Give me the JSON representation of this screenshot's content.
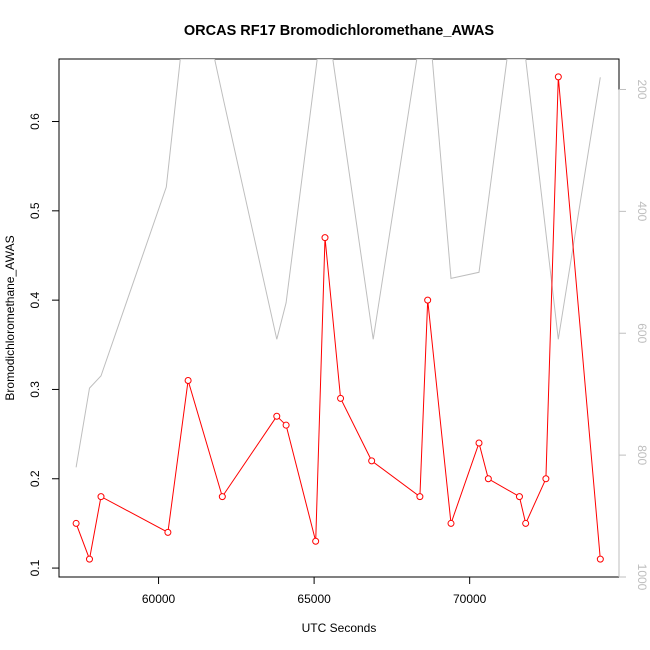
{
  "chart_data": {
    "type": "line",
    "title": "ORCAS RF17 Bromodichloromethane_AWAS",
    "xlabel": "UTC Seconds",
    "ylabel": "Bromodichloromethane_AWAS",
    "xlim": [
      56800,
      74800
    ],
    "ylim": [
      0.09,
      0.67
    ],
    "x_ticks": [
      60000,
      65000,
      70000
    ],
    "y_ticks": [
      0.1,
      0.2,
      0.3,
      0.4,
      0.5,
      0.6
    ],
    "y2_ticks": [
      200,
      400,
      600,
      800,
      1000
    ],
    "y2lim": [
      1000,
      150
    ],
    "grid": false,
    "series": [
      {
        "color": "#ff0000",
        "marker": "open-circle",
        "axis": "left",
        "x": [
          57350,
          57780,
          58150,
          60300,
          60950,
          62050,
          63800,
          64100,
          65050,
          65350,
          65850,
          66850,
          68400,
          68650,
          69400,
          70300,
          70600,
          71600,
          71800,
          72450,
          72850,
          74200
        ],
        "values": [
          0.15,
          0.11,
          0.18,
          0.14,
          0.31,
          0.18,
          0.27,
          0.26,
          0.13,
          0.47,
          0.29,
          0.22,
          0.18,
          0.4,
          0.15,
          0.24,
          0.2,
          0.18,
          0.15,
          0.2,
          0.65,
          0.11
        ]
      },
      {
        "color": "#bebebe",
        "axis": "right",
        "x": [
          57350,
          57780,
          58150,
          60250,
          60700,
          61800,
          62100,
          63800,
          64100,
          65100,
          65600,
          66900,
          68300,
          68800,
          69400,
          70300,
          71200,
          71800,
          72850,
          74200
        ],
        "values": [
          820,
          690,
          670,
          360,
          150,
          150,
          220,
          610,
          550,
          150,
          150,
          610,
          150,
          150,
          510,
          500,
          150,
          150,
          610,
          180
        ]
      }
    ]
  }
}
